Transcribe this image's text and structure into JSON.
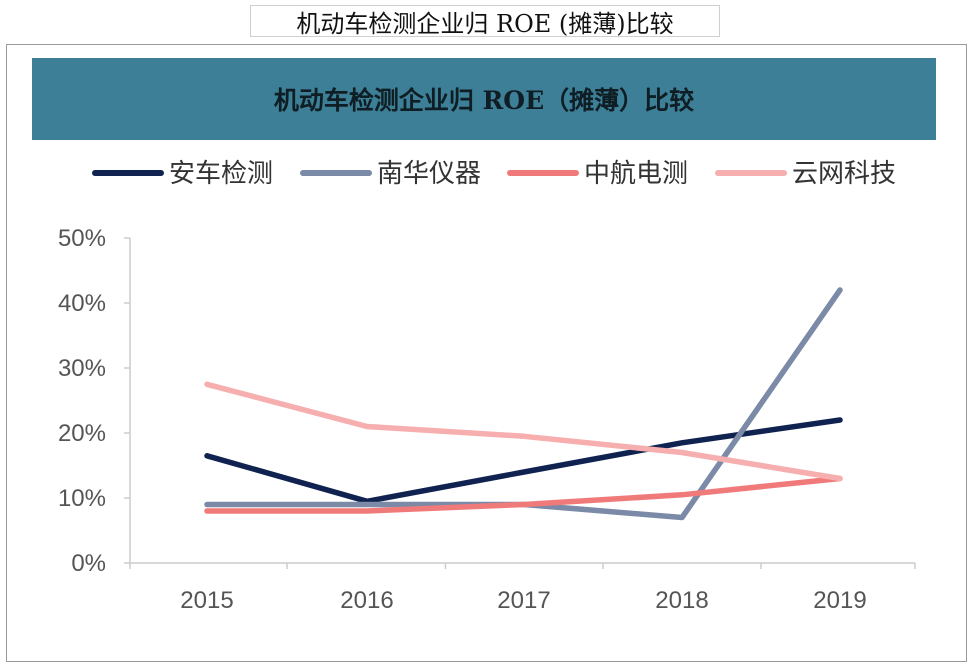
{
  "outer_title": "机动车检测企业归 ROE (摊薄)比较",
  "chart_data": {
    "type": "line",
    "title": "机动车检测企业归 ROE（摊薄）比较",
    "categories": [
      "2015",
      "2016",
      "2017",
      "2018",
      "2019"
    ],
    "ylim": [
      0,
      50
    ],
    "yticks": [
      "0%",
      "10%",
      "20%",
      "30%",
      "40%",
      "50%"
    ],
    "ytick_values": [
      0,
      10,
      20,
      30,
      40,
      50
    ],
    "grid": false,
    "legend_position": "top",
    "series": [
      {
        "name": "安车检测",
        "color": "#0f2250",
        "values": [
          16.5,
          9.5,
          14,
          18.5,
          22
        ]
      },
      {
        "name": "南华仪器",
        "color": "#7b8aa6",
        "values": [
          9,
          9,
          9,
          7,
          42
        ]
      },
      {
        "name": "中航电测",
        "color": "#f07a7a",
        "values": [
          8,
          8,
          9,
          10.5,
          13
        ]
      },
      {
        "name": "云网科技",
        "color": "#f6aeae",
        "values": [
          27.5,
          21,
          19.5,
          17,
          13
        ]
      }
    ]
  }
}
